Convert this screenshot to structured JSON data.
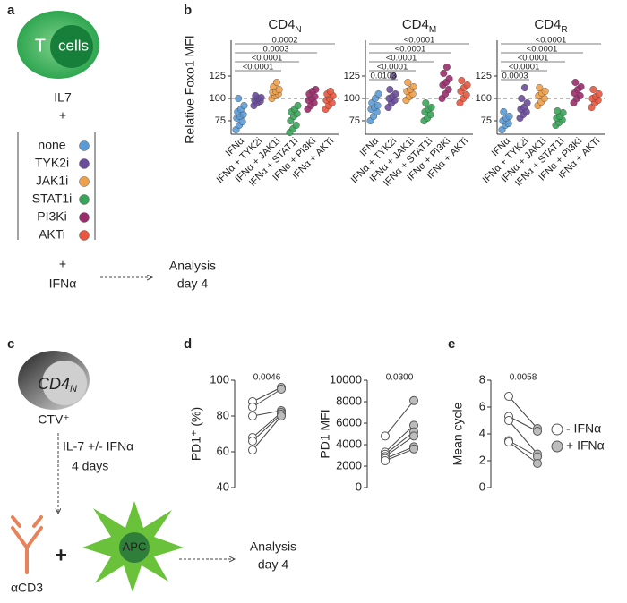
{
  "panel_labels": [
    "a",
    "b",
    "c",
    "d",
    "e"
  ],
  "panel_a": {
    "cell_letter": "T",
    "cell_word": "cells",
    "cytokine": "IL7",
    "plus1": "+",
    "conditions": [
      {
        "label": "none",
        "color": "#5b9bd5"
      },
      {
        "label": "TYK2i",
        "color": "#6a4c9c"
      },
      {
        "label": "JAK1i",
        "color": "#f0a04b"
      },
      {
        "label": "STAT1i",
        "color": "#3aa55a"
      },
      {
        "label": "PI3Ki",
        "color": "#9b2c6b"
      },
      {
        "label": "AKTi",
        "color": "#e8573e"
      }
    ],
    "plus2": "+",
    "treatment": "IFNα",
    "analysis": "Analysis",
    "day": "day 4"
  },
  "panel_c": {
    "cell": "CD4",
    "cell_sub": "N",
    "dye": "CTV⁺",
    "culture": "IL-7 +/- IFNα",
    "duration": "4 days",
    "antibody": "αCD3",
    "plus": "+",
    "apc": "APC",
    "analysis": "Analysis",
    "day": "day 4"
  },
  "chart_data": [
    {
      "type": "strip",
      "title": "CD4",
      "title_sub": "N",
      "ylabel": "Relative Foxo1 MFI",
      "categories": [
        "IFNα",
        "IFNα + TYK2i",
        "IFNα + JAK1i",
        "IFNα + STAT1i",
        "IFNα + PI3Ki",
        "IFNα + AKTi"
      ],
      "colors": [
        "#5b9bd5",
        "#6a4c9c",
        "#f0a04b",
        "#3aa55a",
        "#9b2c6b",
        "#e8573e"
      ],
      "values": [
        [
          65,
          70,
          74,
          78,
          80,
          82,
          85,
          88,
          92,
          100
        ],
        [
          92,
          95,
          97,
          98,
          100,
          101,
          103
        ],
        [
          100,
          103,
          105,
          107,
          108,
          110,
          113,
          118
        ],
        [
          62,
          66,
          70,
          75,
          80,
          83,
          85,
          88,
          92
        ],
        [
          88,
          92,
          95,
          98,
          100,
          102,
          105,
          108,
          110
        ],
        [
          88,
          92,
          95,
          98,
          100,
          103,
          105,
          108
        ]
      ],
      "ylim": [
        60,
        165
      ],
      "yticks": [
        75,
        100,
        125
      ],
      "refline": 100,
      "significance": [
        {
          "from": 0,
          "to": 5,
          "label": "0.0002"
        },
        {
          "from": 0,
          "to": 4,
          "label": "0.0003"
        },
        {
          "from": 0,
          "to": 3,
          "label": "<0.0001"
        },
        {
          "from": 0,
          "to": 2,
          "label": "<0.0001"
        }
      ]
    },
    {
      "type": "strip",
      "title": "CD4",
      "title_sub": "M",
      "categories": [
        "IFNα",
        "IFNα + TYK2i",
        "IFNα + JAK1i",
        "IFNα + STAT1i",
        "IFNα + PI3Ki",
        "IFNα + AKTi"
      ],
      "colors": [
        "#5b9bd5",
        "#6a4c9c",
        "#f0a04b",
        "#3aa55a",
        "#9b2c6b",
        "#e8573e"
      ],
      "values": [
        [
          75,
          80,
          85,
          88,
          90,
          92,
          95,
          100,
          105
        ],
        [
          90,
          95,
          98,
          100,
          102,
          105,
          110,
          125
        ],
        [
          98,
          102,
          105,
          108,
          110,
          113,
          118
        ],
        [
          75,
          78,
          82,
          85,
          88,
          90,
          95
        ],
        [
          100,
          105,
          110,
          115,
          118,
          122,
          128,
          135
        ],
        [
          95,
          100,
          104,
          108,
          112,
          115,
          120
        ]
      ],
      "ylim": [
        60,
        165
      ],
      "yticks": [
        75,
        100,
        125
      ],
      "refline": 100,
      "significance": [
        {
          "from": 0,
          "to": 5,
          "label": "<0.0001"
        },
        {
          "from": 0,
          "to": 4,
          "label": "<0.0001"
        },
        {
          "from": 0,
          "to": 3,
          "label": "<0.0001"
        },
        {
          "from": 0,
          "to": 2,
          "label": "<0.0001"
        },
        {
          "from": 0,
          "to": 1,
          "label": "0.0103"
        }
      ]
    },
    {
      "type": "strip",
      "title": "CD4",
      "title_sub": "R",
      "categories": [
        "IFNα",
        "IFNα + TYK2i",
        "IFNα + JAK1i",
        "IFNα + STAT1i",
        "IFNα + PI3Ki",
        "IFNα + AKTi"
      ],
      "colors": [
        "#5b9bd5",
        "#6a4c9c",
        "#f0a04b",
        "#3aa55a",
        "#9b2c6b",
        "#e8573e"
      ],
      "values": [
        [
          65,
          70,
          72,
          75,
          78,
          80,
          85
        ],
        [
          78,
          82,
          85,
          88,
          90,
          95,
          100,
          112
        ],
        [
          92,
          96,
          100,
          103,
          106,
          108,
          112
        ],
        [
          70,
          73,
          76,
          78,
          80,
          84,
          86
        ],
        [
          95,
          100,
          103,
          106,
          110,
          113,
          118
        ],
        [
          90,
          95,
          98,
          100,
          102,
          105,
          110
        ]
      ],
      "ylim": [
        60,
        165
      ],
      "yticks": [
        75,
        100,
        125
      ],
      "refline": 100,
      "significance": [
        {
          "from": 0,
          "to": 5,
          "label": "<0.0001"
        },
        {
          "from": 0,
          "to": 4,
          "label": "<0.0001"
        },
        {
          "from": 0,
          "to": 3,
          "label": "<0.0001"
        },
        {
          "from": 0,
          "to": 2,
          "label": "<0.0001"
        },
        {
          "from": 0,
          "to": 1,
          "label": "0.0003"
        }
      ]
    },
    {
      "type": "paired",
      "ylabel": "PD1⁺ (%)",
      "annotation": "0.0046",
      "ylim": [
        40,
        100
      ],
      "yticks": [
        40,
        60,
        80,
        100
      ],
      "series": [
        {
          "color": "#ffffff",
          "values": [
            88,
            85,
            80,
            68,
            66,
            61
          ]
        },
        {
          "color": "#bdbdbd",
          "values": [
            96,
            95,
            83,
            82,
            81,
            80
          ]
        }
      ]
    },
    {
      "type": "paired",
      "ylabel": "PD1 MFI",
      "annotation": "0.0300",
      "ylim": [
        0,
        10000
      ],
      "yticks": [
        0,
        2000,
        4000,
        6000,
        8000,
        10000
      ],
      "series": [
        {
          "color": "#ffffff",
          "values": [
            4800,
            3300,
            3100,
            2900,
            2700,
            2500
          ]
        },
        {
          "color": "#bdbdbd",
          "values": [
            8100,
            5800,
            5200,
            4800,
            3800,
            3600
          ]
        }
      ]
    },
    {
      "type": "paired",
      "ylabel": "Mean cycle",
      "annotation": "0.0058",
      "ylim": [
        0,
        8
      ],
      "yticks": [
        0,
        2,
        4,
        6,
        8
      ],
      "series": [
        {
          "name": "- IFNα",
          "color": "#ffffff",
          "values": [
            6.8,
            5.3,
            5.0,
            3.5,
            3.4
          ]
        },
        {
          "name": "+ IFNα",
          "color": "#bdbdbd",
          "values": [
            4.4,
            4.2,
            2.5,
            2.3,
            1.8
          ]
        }
      ]
    }
  ]
}
